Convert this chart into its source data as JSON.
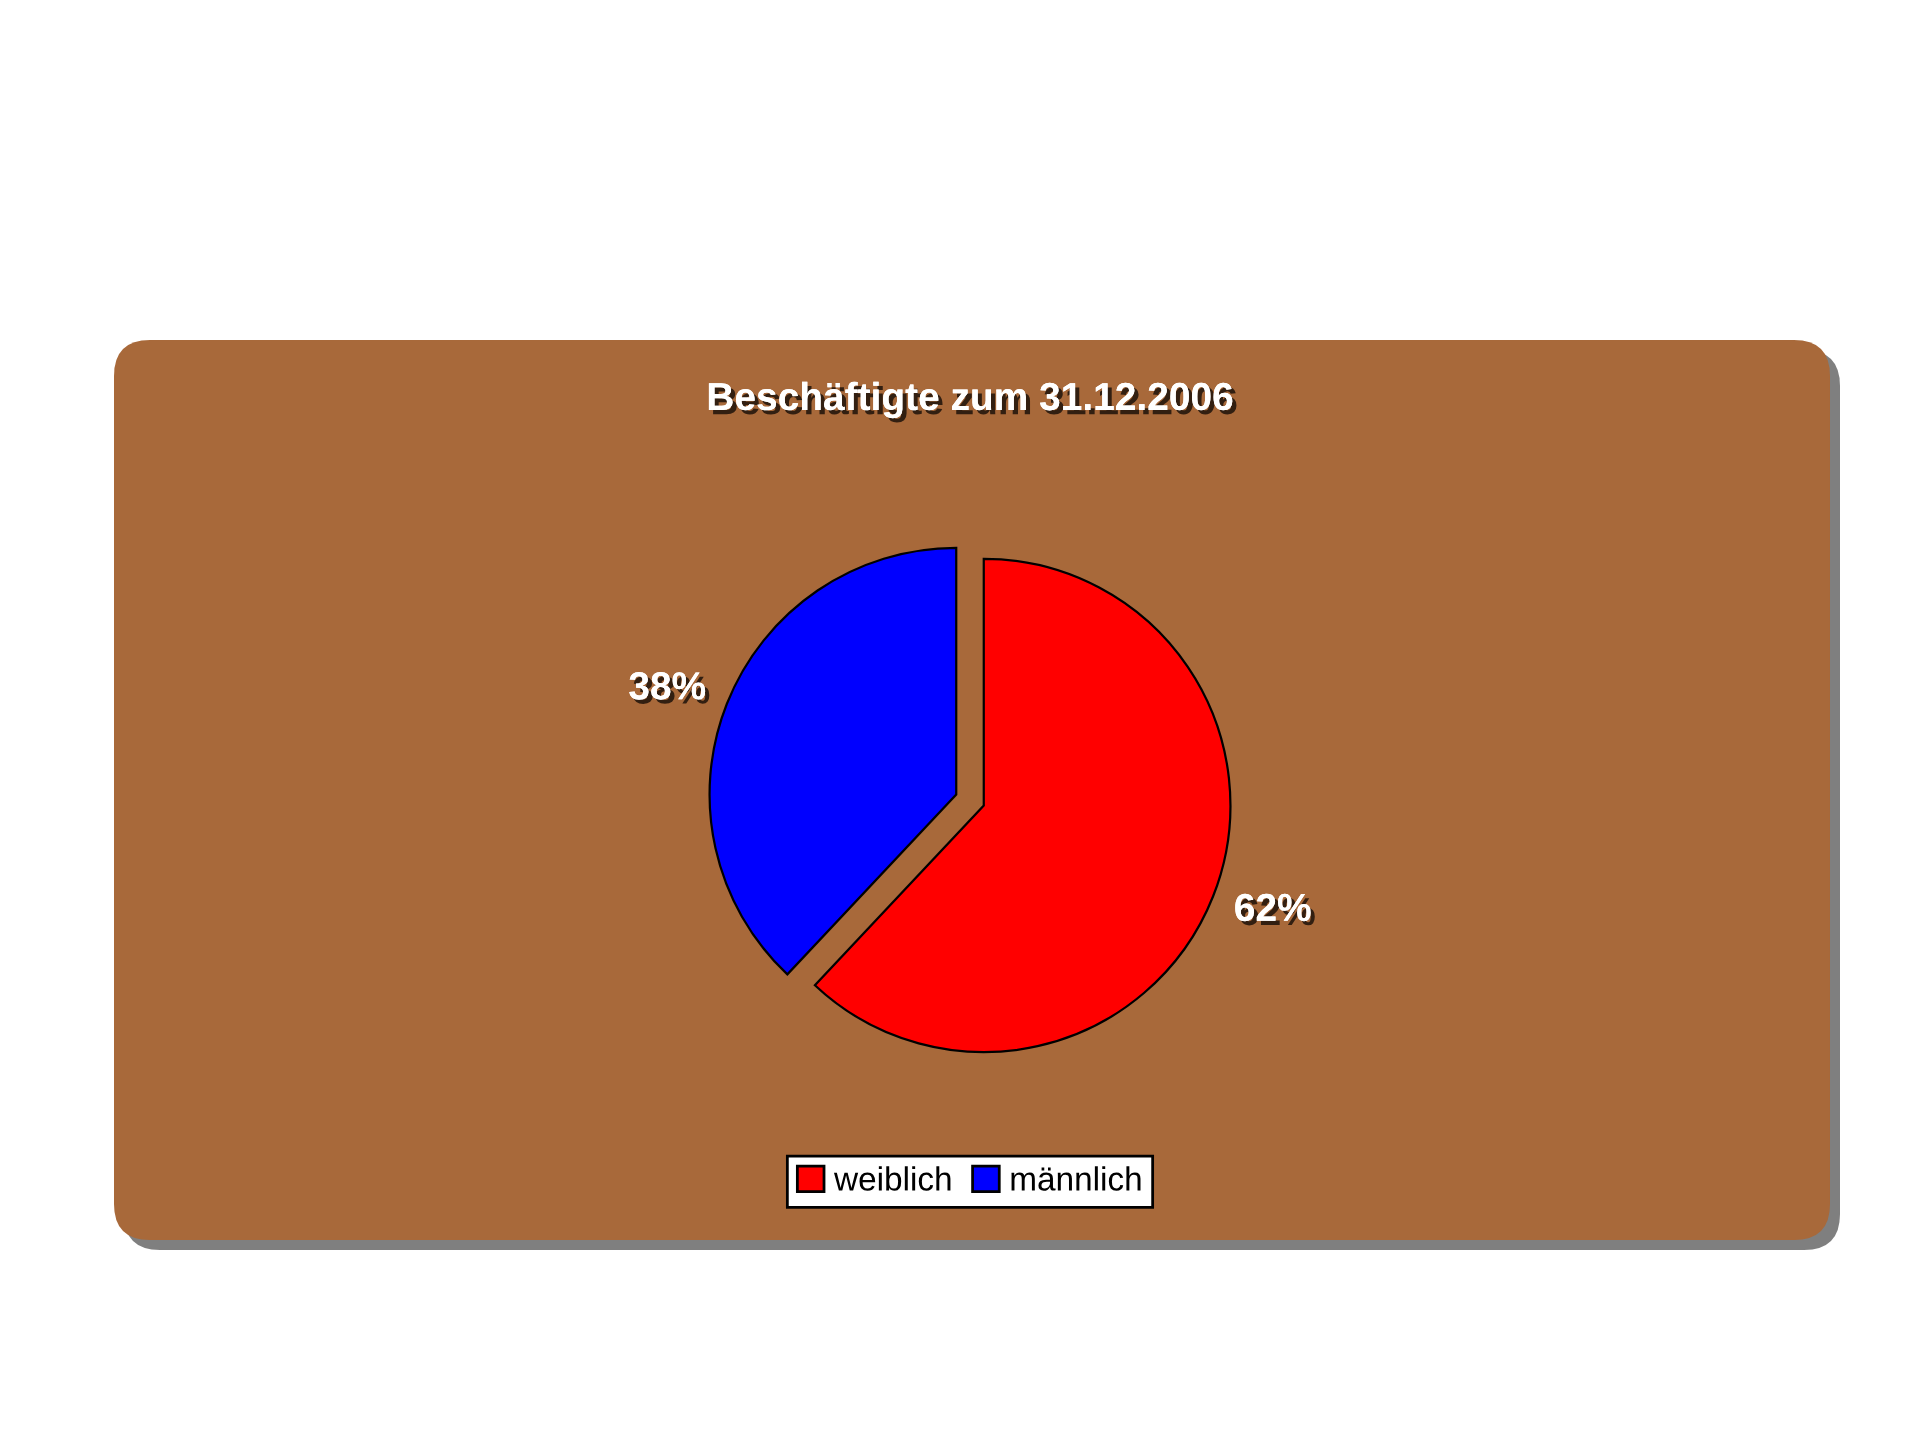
{
  "chart_data": {
    "type": "pie",
    "title": "Beschäftigte zum 31.12.2006",
    "categories": [
      "weiblich",
      "männlich"
    ],
    "values": [
      62,
      38
    ],
    "colors": [
      "#ff0000",
      "#0000ff"
    ],
    "value_labels": [
      "62%",
      "38%"
    ],
    "legend": "bottom"
  }
}
